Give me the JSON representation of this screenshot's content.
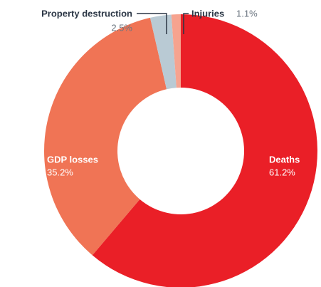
{
  "chart_data": {
    "type": "donut",
    "categories": [
      "Deaths",
      "GDP losses",
      "Property destruction",
      "Injuries"
    ],
    "values": [
      61.2,
      35.2,
      2.5,
      1.1
    ],
    "value_labels": [
      "61.2%",
      "35.2%",
      "2.5%",
      "1.1%"
    ],
    "colors": [
      "#ea1f27",
      "#f07455",
      "#b9cad4",
      "#f6a38f"
    ]
  }
}
